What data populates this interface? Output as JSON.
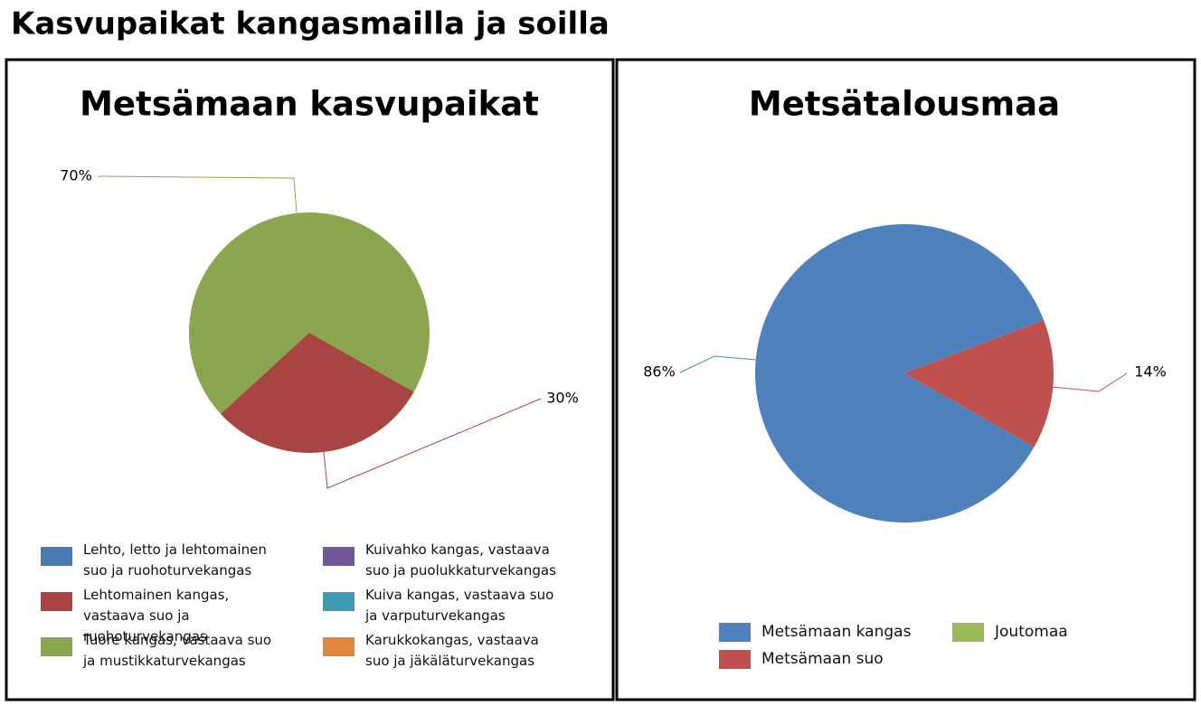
{
  "title": "Kasvupaikat kangasmailla ja soilla",
  "chart_data": [
    {
      "type": "pie",
      "title": "Metsämaan kasvupaikat",
      "categories": [
        "Lehto, letto ja lehtomainen suo ja ruohoturvekangas",
        "Lehtomainen kangas, vastaava suo ja ruohoturvekangas",
        "Tuore kangas, vastaava suo ja mustikkaturvekangas",
        "Kuivahko kangas, vastaava suo ja puolukkaturvekangas",
        "Kuiva kangas, vastaava suo ja varputurvekangas",
        "Karukkokangas, vastaava suo ja jäkäläturvekangas"
      ],
      "values": [
        0,
        30,
        70,
        0,
        0,
        0
      ],
      "value_labels": [
        null,
        "30%",
        "70%",
        null,
        null,
        null
      ],
      "colors": [
        "#4a7ab5",
        "#a84442",
        "#8aa64e",
        "#72589a",
        "#3f9bb1",
        "#e0873f"
      ]
    },
    {
      "type": "pie",
      "title": "Metsätalousmaa",
      "categories": [
        "Metsämaan kangas",
        "Metsämaan suo",
        "Joutomaa"
      ],
      "values": [
        86,
        14,
        0
      ],
      "value_labels": [
        "86%",
        "14%",
        null
      ],
      "colors": [
        "#4f81bd",
        "#c0504d",
        "#9bbb59"
      ]
    }
  ]
}
